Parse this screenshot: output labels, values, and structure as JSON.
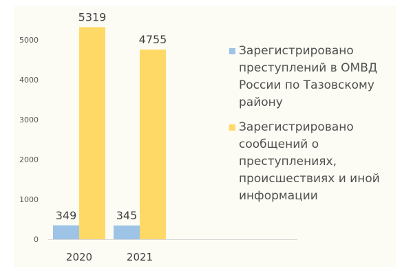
{
  "chart_data": {
    "type": "bar",
    "categories": [
      "2020",
      "2021"
    ],
    "series": [
      {
        "name": "Зарегистрировано преступлений в ОМВД России по Тазовскому району",
        "color": "#9dc3e6",
        "values": [
          349,
          345
        ]
      },
      {
        "name": "Зарегистрировано сообщений о преступлениях, происшествиях и иной информации",
        "color": "#ffd966",
        "values": [
          5319,
          4755
        ]
      }
    ],
    "y_ticks": [
      "0",
      "1000",
      "2000",
      "3000",
      "4000",
      "5000"
    ],
    "ylim": [
      0,
      5500
    ],
    "grid": false,
    "legend": "right",
    "data_labels": true
  }
}
